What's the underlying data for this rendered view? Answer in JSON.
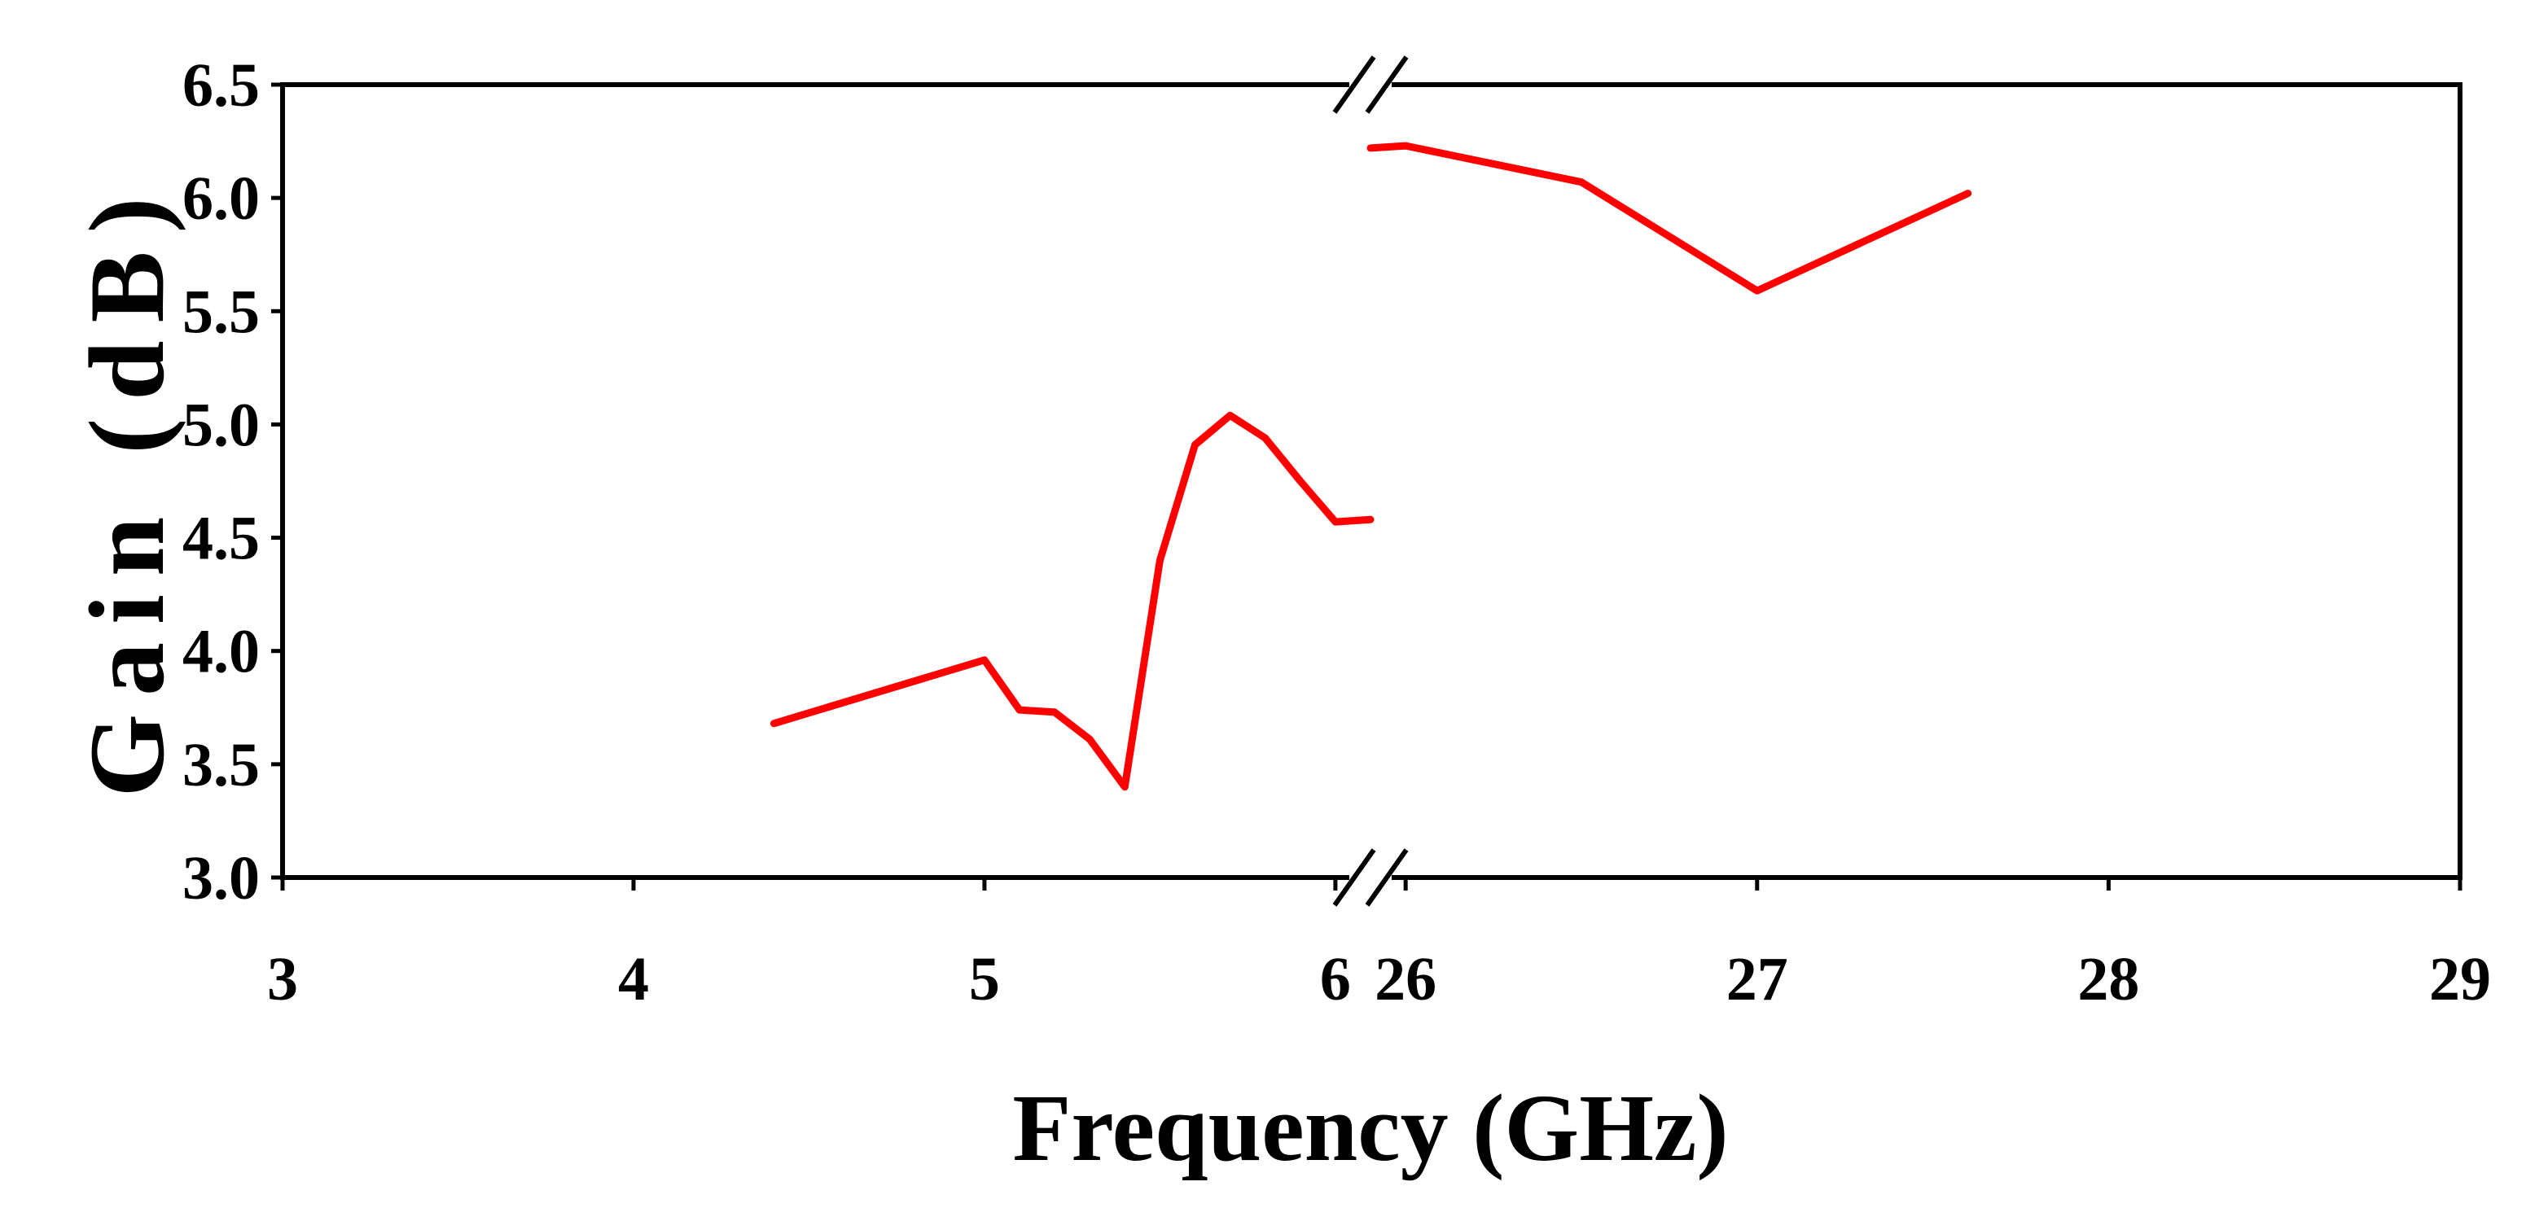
{
  "chart_data": {
    "type": "line",
    "xlabel": "Frequency (GHz)",
    "ylabel": "Gain (dB)",
    "ylim": [
      3.0,
      6.5
    ],
    "y_ticks": [
      "3.0",
      "3.5",
      "4.0",
      "4.5",
      "5.0",
      "5.5",
      "6.0",
      "6.5"
    ],
    "x_axis_break": true,
    "x_segments": [
      {
        "xlim": [
          3,
          6.1
        ],
        "ticks": [
          "3",
          "4",
          "5",
          "6"
        ]
      },
      {
        "xlim": [
          25.9,
          29
        ],
        "ticks": [
          "26",
          "27",
          "28",
          "29"
        ]
      }
    ],
    "series": [
      {
        "color": "#ff0000",
        "segment": 0,
        "x": [
          4.4,
          5.0,
          5.1,
          5.2,
          5.3,
          5.4,
          5.5,
          5.6,
          5.7,
          5.8,
          5.9,
          6.0,
          6.1
        ],
        "y": [
          3.68,
          3.96,
          3.74,
          3.73,
          3.61,
          3.4,
          4.4,
          4.91,
          5.04,
          4.94,
          4.75,
          4.57,
          4.58
        ]
      },
      {
        "color": "#ff0000",
        "segment": 1,
        "x": [
          25.9,
          26.0,
          26.5,
          27.0,
          27.6
        ],
        "y": [
          6.22,
          6.23,
          6.07,
          5.59,
          6.02
        ]
      }
    ]
  }
}
